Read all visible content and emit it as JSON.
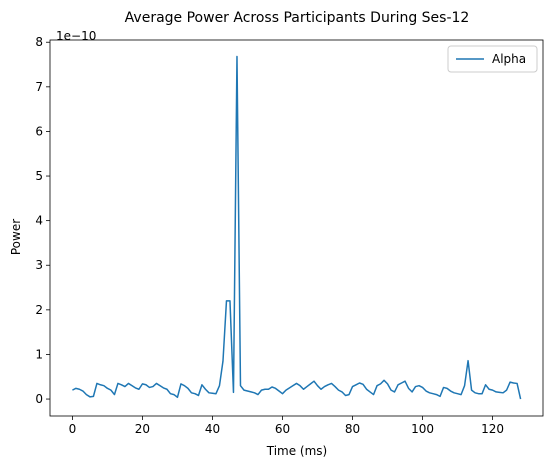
{
  "chart_data": {
    "type": "line",
    "title": "Average Power Across Participants During Ses-12",
    "xlabel": "Time (ms)",
    "ylabel": "Power",
    "offset_text": "1e−10",
    "scale": 1e-10,
    "xlim": [
      -6.4,
      134.4
    ],
    "ylim": [
      -0.38,
      8.05
    ],
    "xticks": [
      0,
      20,
      40,
      60,
      80,
      100,
      120
    ],
    "yticks": [
      0,
      1,
      2,
      3,
      4,
      5,
      6,
      7,
      8
    ],
    "grid": false,
    "legend": "top-right",
    "series": [
      {
        "name": "Alpha",
        "color": "#1f77b4",
        "x": [
          0,
          1,
          2,
          3,
          4,
          5,
          6,
          7,
          8,
          9,
          10,
          11,
          12,
          13,
          14,
          15,
          16,
          17,
          18,
          19,
          20,
          21,
          22,
          23,
          24,
          25,
          26,
          27,
          28,
          29,
          30,
          31,
          32,
          33,
          34,
          35,
          36,
          37,
          38,
          39,
          40,
          41,
          42,
          43,
          44,
          45,
          46,
          47,
          48,
          49,
          50,
          51,
          52,
          53,
          54,
          55,
          56,
          57,
          58,
          59,
          60,
          61,
          62,
          63,
          64,
          65,
          66,
          67,
          68,
          69,
          70,
          71,
          72,
          73,
          74,
          75,
          76,
          77,
          78,
          79,
          80,
          81,
          82,
          83,
          84,
          85,
          86,
          87,
          88,
          89,
          90,
          91,
          92,
          93,
          94,
          95,
          96,
          97,
          98,
          99,
          100,
          101,
          102,
          103,
          104,
          105,
          106,
          107,
          108,
          109,
          110,
          111,
          112,
          113,
          114,
          115,
          116,
          117,
          118,
          119,
          120,
          121,
          122,
          123,
          124,
          125,
          126,
          127,
          128
        ],
        "values": [
          0.2,
          0.24,
          0.22,
          0.18,
          0.1,
          0.05,
          0.06,
          0.35,
          0.32,
          0.3,
          0.24,
          0.2,
          0.1,
          0.35,
          0.32,
          0.28,
          0.35,
          0.3,
          0.25,
          0.22,
          0.34,
          0.32,
          0.26,
          0.28,
          0.35,
          0.3,
          0.25,
          0.22,
          0.12,
          0.1,
          0.04,
          0.34,
          0.3,
          0.24,
          0.14,
          0.12,
          0.08,
          0.32,
          0.22,
          0.14,
          0.13,
          0.12,
          0.3,
          0.85,
          2.2,
          2.2,
          0.15,
          7.68,
          0.3,
          0.2,
          0.18,
          0.16,
          0.14,
          0.1,
          0.2,
          0.22,
          0.22,
          0.27,
          0.24,
          0.18,
          0.12,
          0.2,
          0.25,
          0.3,
          0.35,
          0.3,
          0.22,
          0.28,
          0.34,
          0.4,
          0.3,
          0.22,
          0.28,
          0.32,
          0.35,
          0.28,
          0.2,
          0.16,
          0.08,
          0.1,
          0.28,
          0.32,
          0.36,
          0.33,
          0.22,
          0.16,
          0.1,
          0.3,
          0.34,
          0.42,
          0.34,
          0.2,
          0.16,
          0.32,
          0.36,
          0.4,
          0.24,
          0.16,
          0.28,
          0.3,
          0.26,
          0.18,
          0.14,
          0.12,
          0.1,
          0.06,
          0.26,
          0.24,
          0.18,
          0.14,
          0.12,
          0.1,
          0.3,
          0.86,
          0.2,
          0.14,
          0.12,
          0.12,
          0.32,
          0.22,
          0.2,
          0.16,
          0.15,
          0.14,
          0.2,
          0.38,
          0.36,
          0.35,
          0.0
        ]
      }
    ]
  }
}
